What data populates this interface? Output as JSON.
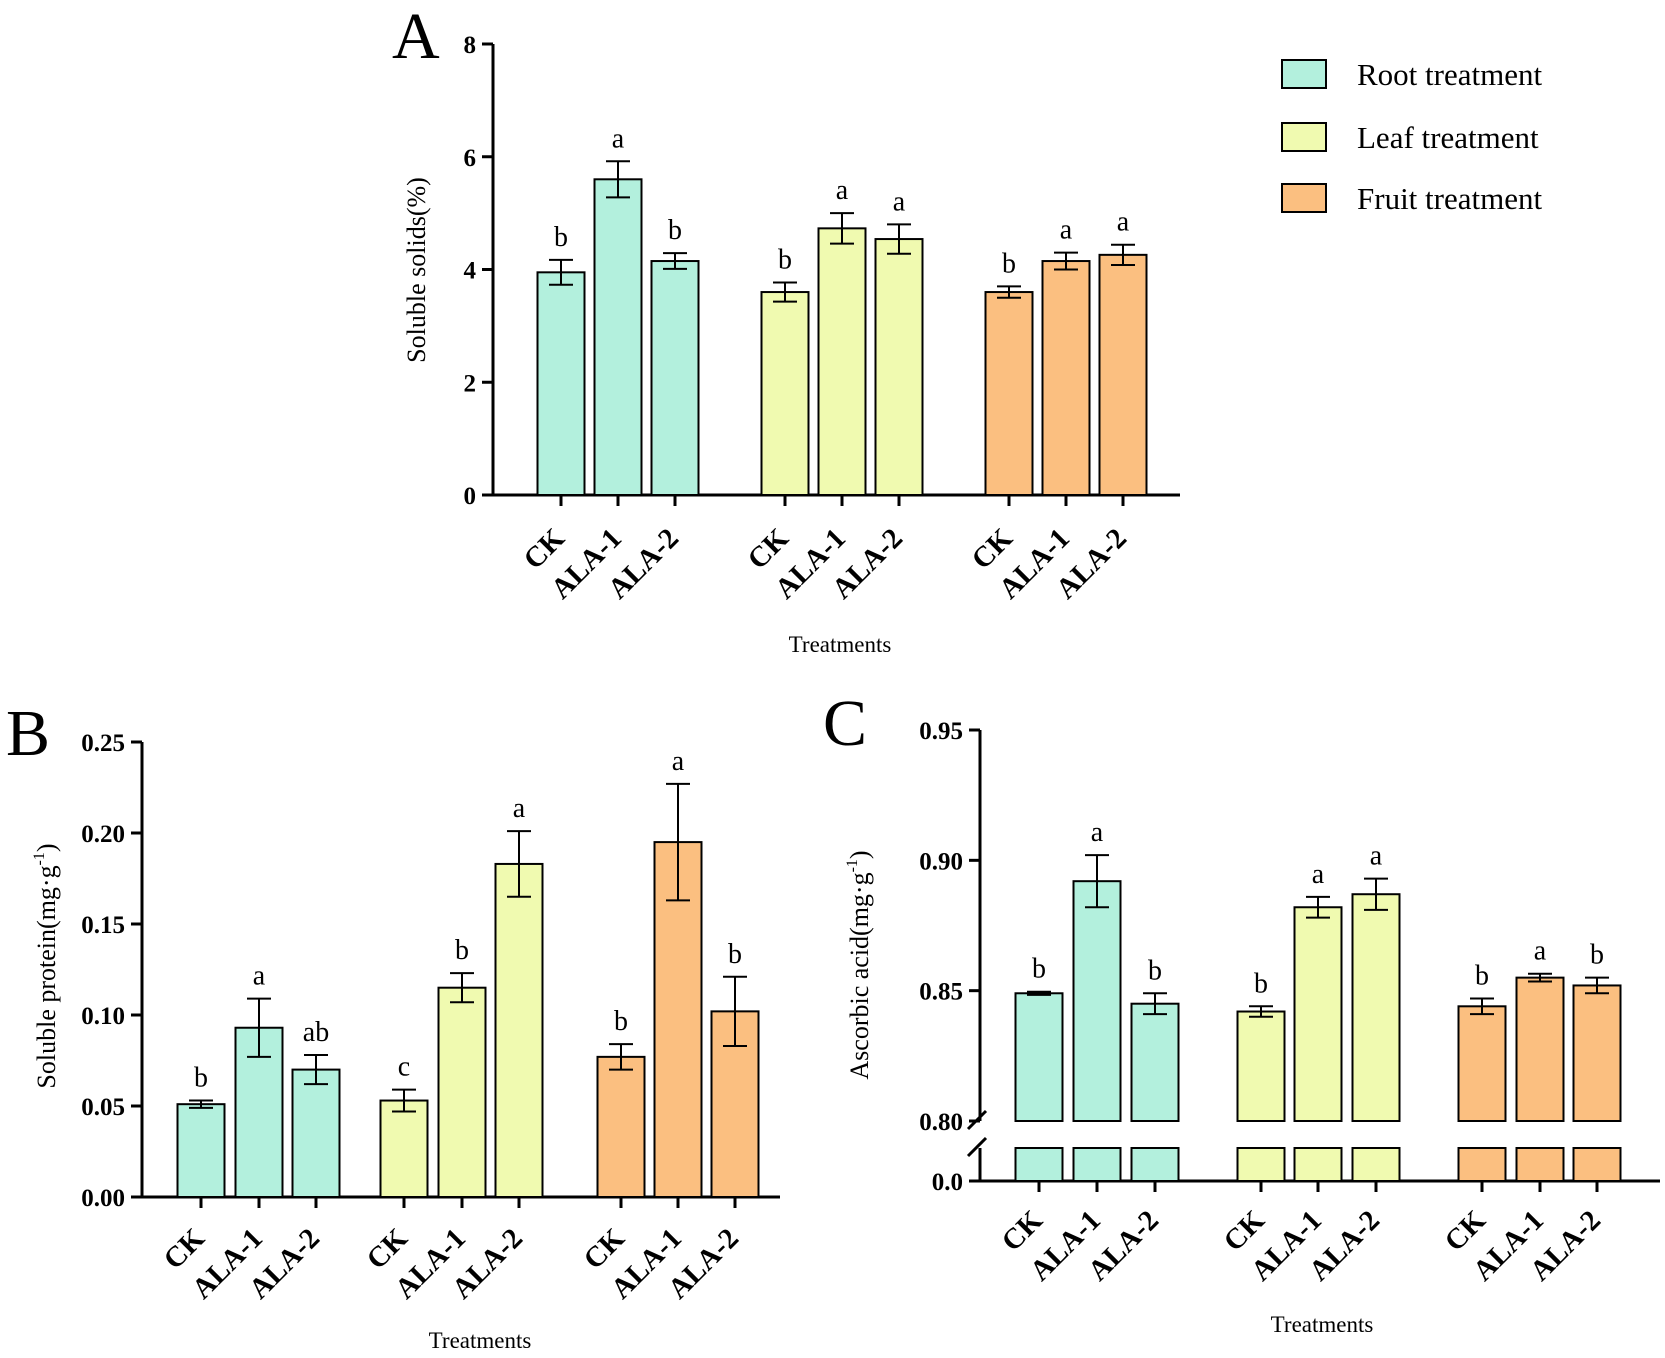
{
  "colors": {
    "root": "#b3f0dd",
    "leaf": "#f0fab0",
    "fruit": "#fbbf80",
    "stroke": "#000000"
  },
  "legend": [
    {
      "label": "Root treatment",
      "color": "#b3f0dd"
    },
    {
      "label": "Leaf treatment",
      "color": "#f0fab0"
    },
    {
      "label": "Fruit treatment",
      "color": "#fbbf80"
    }
  ],
  "chart_data": [
    {
      "panel": "A",
      "type": "bar",
      "ylabel": "Soluble solids(%)",
      "xlabel": "Treatments",
      "ylim": [
        0,
        8
      ],
      "yticks": [
        "0",
        "2",
        "4",
        "6",
        "8"
      ],
      "categories": [
        "CK",
        "ALA-1",
        "ALA-2",
        "CK",
        "ALA-1",
        "ALA-2",
        "CK",
        "ALA-1",
        "ALA-2"
      ],
      "groups": [
        "Root treatment",
        "Leaf treatment",
        "Fruit treatment"
      ],
      "values": [
        3.95,
        5.6,
        4.15,
        3.6,
        4.73,
        4.54,
        3.6,
        4.15,
        4.26
      ],
      "errors": [
        0.22,
        0.32,
        0.14,
        0.17,
        0.27,
        0.26,
        0.1,
        0.15,
        0.18
      ],
      "letters": [
        "b",
        "a",
        "b",
        "b",
        "a",
        "a",
        "b",
        "a",
        "a"
      ]
    },
    {
      "panel": "B",
      "type": "bar",
      "ylabel": "Soluble protein(mg·g",
      "ylabel_sup": "-1",
      "ylabel_end": ")",
      "xlabel": "Treatments",
      "ylim": [
        0,
        0.25
      ],
      "yticks": [
        "0.00",
        "0.05",
        "0.10",
        "0.15",
        "0.20",
        "0.25"
      ],
      "categories": [
        "CK",
        "ALA-1",
        "ALA-2",
        "CK",
        "ALA-1",
        "ALA-2",
        "CK",
        "ALA-1",
        "ALA-2"
      ],
      "groups": [
        "Root treatment",
        "Leaf treatment",
        "Fruit treatment"
      ],
      "values": [
        0.051,
        0.093,
        0.07,
        0.053,
        0.115,
        0.183,
        0.077,
        0.195,
        0.102
      ],
      "errors": [
        0.002,
        0.016,
        0.008,
        0.006,
        0.008,
        0.018,
        0.007,
        0.032,
        0.019
      ],
      "letters": [
        "b",
        "a",
        "ab",
        "c",
        "b",
        "a",
        "b",
        "a",
        "b"
      ]
    },
    {
      "panel": "C",
      "type": "bar",
      "ylabel": "Ascorbic acid(mg·g",
      "ylabel_sup": "-1",
      "ylabel_end": ")",
      "xlabel": "Treatments",
      "ylim": [
        0.8,
        0.95
      ],
      "axis_break": true,
      "yticks": [
        "0.80",
        "0.85",
        "0.90",
        "0.95"
      ],
      "ytick_lower": "0.0",
      "categories": [
        "CK",
        "ALA-1",
        "ALA-2",
        "CK",
        "ALA-1",
        "ALA-2",
        "CK",
        "ALA-1",
        "ALA-2"
      ],
      "groups": [
        "Root treatment",
        "Leaf treatment",
        "Fruit treatment"
      ],
      "values": [
        0.849,
        0.892,
        0.845,
        0.842,
        0.882,
        0.887,
        0.844,
        0.855,
        0.852
      ],
      "errors": [
        0.0006,
        0.01,
        0.004,
        0.002,
        0.004,
        0.006,
        0.003,
        0.0015,
        0.003
      ],
      "letters": [
        "b",
        "a",
        "b",
        "b",
        "a",
        "a",
        "b",
        "a",
        "b"
      ]
    }
  ]
}
